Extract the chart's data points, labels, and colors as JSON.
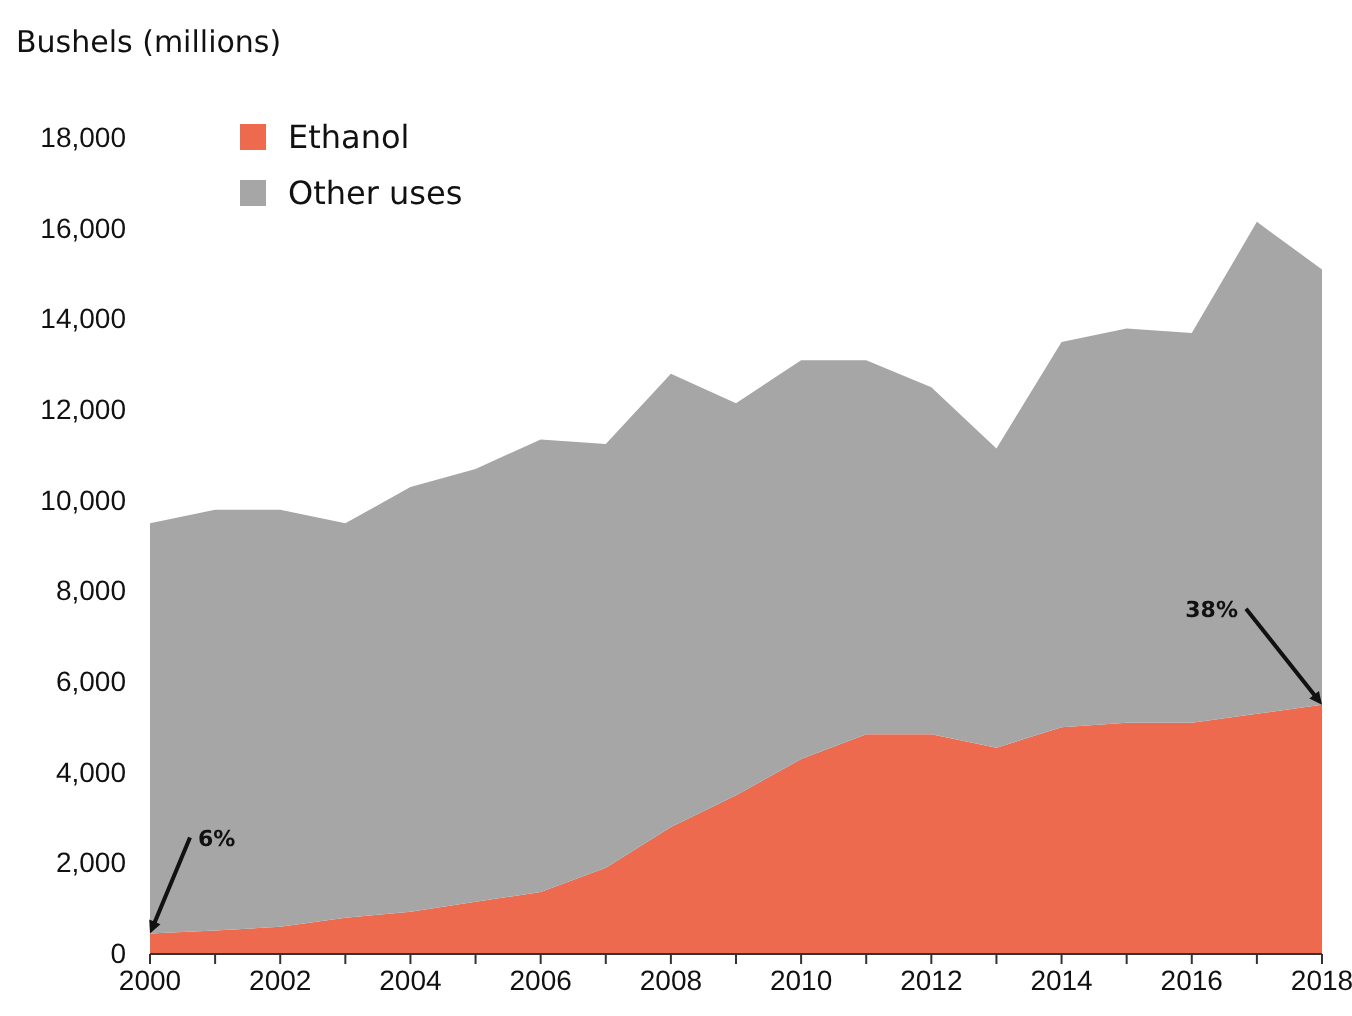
{
  "chart_data": {
    "type": "area",
    "stacked": true,
    "ylabel": "Bushels (millions)",
    "x": [
      2000,
      2001,
      2002,
      2003,
      2004,
      2005,
      2006,
      2007,
      2008,
      2009,
      2010,
      2011,
      2012,
      2013,
      2014,
      2015,
      2016,
      2017,
      2018
    ],
    "series": [
      {
        "name": "Ethanol",
        "color": "#ee6a4f",
        "values": [
          450,
          520,
          600,
          800,
          930,
          1150,
          1370,
          1900,
          2800,
          3500,
          4300,
          4850,
          4850,
          4550,
          5000,
          5100,
          5100,
          5300,
          5500
        ]
      },
      {
        "name": "Other uses",
        "color": "#a6a6a6",
        "values": [
          9050,
          9280,
          9200,
          8700,
          9370,
          9550,
          9980,
          9350,
          10000,
          8650,
          8800,
          8250,
          7650,
          6600,
          8500,
          8700,
          8600,
          10850,
          9600
        ]
      }
    ],
    "xlim": [
      2000,
      2018
    ],
    "xticks": [
      2000,
      {
        "value": 2001,
        "label": null
      },
      2002,
      {
        "value": 2003,
        "label": null
      },
      2004,
      {
        "value": 2005,
        "label": null
      },
      2006,
      {
        "value": 2007,
        "label": null
      },
      2008,
      {
        "value": 2009,
        "label": null
      },
      2010,
      {
        "value": 2011,
        "label": null
      },
      2012,
      {
        "value": 2013,
        "label": null
      },
      2014,
      {
        "value": 2015,
        "label": null
      },
      2016,
      {
        "value": 2017,
        "label": null
      },
      2018
    ],
    "ylim": [
      0,
      18000
    ],
    "yticks": [
      {
        "value": 0,
        "label": "0"
      },
      {
        "value": 2000,
        "label": "2,000"
      },
      {
        "value": 4000,
        "label": "4,000"
      },
      {
        "value": 6000,
        "label": "6,000"
      },
      {
        "value": 8000,
        "label": "8,000"
      },
      {
        "value": 10000,
        "label": "10,000"
      },
      {
        "value": 12000,
        "label": "12,000"
      },
      {
        "value": 14000,
        "label": "14,000"
      },
      {
        "value": 16000,
        "label": "16,000"
      },
      {
        "value": 18000,
        "label": "18,000"
      }
    ],
    "legend": "top left",
    "annotations": [
      {
        "text": "6%",
        "x": 2000,
        "y": 450
      },
      {
        "text": "38%",
        "x": 2018,
        "y": 5500
      }
    ]
  }
}
